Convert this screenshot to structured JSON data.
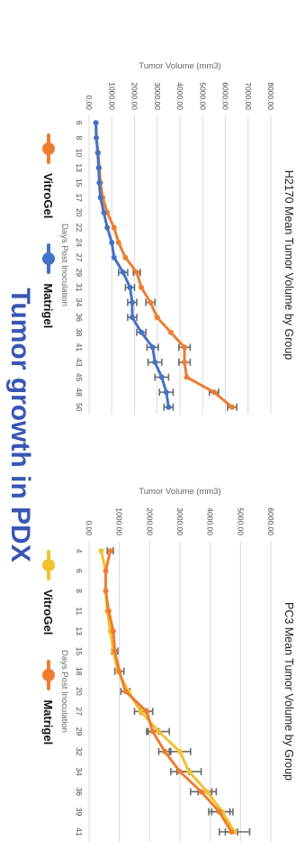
{
  "page_title": "Tumor growth in PDX",
  "colors": {
    "vitrogel_left": "#ed7d31",
    "matrigel_left": "#4472c4",
    "vitrogel_right": "#f2c12e",
    "matrigel_right": "#ed7d31",
    "title": "#3a56b5",
    "error_bar": "#6b6b6b",
    "grid": "#d9d9d9"
  },
  "legends": [
    {
      "items": [
        {
          "label": "VitroGel",
          "color": "#ed7d31"
        },
        {
          "label": "Matrigel",
          "color": "#4472c4"
        }
      ]
    },
    {
      "items": [
        {
          "label": "VitroGel",
          "color": "#f2c12e"
        },
        {
          "label": "Matrigel",
          "color": "#ed7d31"
        }
      ]
    }
  ],
  "chart_data": [
    {
      "type": "line",
      "title": "H2170 Mean Tumor Volume by Group",
      "xlabel": "Days Post Inoculation",
      "ylabel": "Tumor Volume (mm3)",
      "ylim": [
        0,
        8000
      ],
      "yticks": [
        "0.00",
        "1000.00",
        "2000.00",
        "3000.00",
        "4000.00",
        "5000.00",
        "6000.00",
        "7000.00",
        "8000.00"
      ],
      "grid": true,
      "legend_position": "bottom",
      "categories": [
        "6",
        "8",
        "10",
        "13",
        "15",
        "17",
        "20",
        "22",
        "24",
        "27",
        "29",
        "31",
        "34",
        "36",
        "38",
        "41",
        "43",
        "45",
        "48",
        "50"
      ],
      "series": [
        {
          "name": "VitroGel",
          "color": "#ed7d31",
          "values": [
            300,
            320,
            400,
            450,
            500,
            600,
            800,
            1100,
            1300,
            1600,
            2100,
            2300,
            2700,
            3000,
            3600,
            4200,
            4200,
            4300,
            5500,
            6300
          ],
          "errors": [
            0,
            0,
            0,
            0,
            0,
            0,
            0,
            0,
            0,
            0,
            150,
            0,
            200,
            0,
            0,
            250,
            250,
            0,
            200,
            200
          ]
        },
        {
          "name": "Matrigel",
          "color": "#4472c4",
          "values": [
            300,
            320,
            380,
            420,
            450,
            500,
            650,
            800,
            1000,
            1100,
            1500,
            1800,
            1900,
            1900,
            2300,
            2800,
            2900,
            3200,
            3400,
            3500
          ],
          "errors": [
            0,
            0,
            0,
            0,
            0,
            0,
            0,
            0,
            0,
            0,
            200,
            200,
            200,
            200,
            200,
            250,
            300,
            300,
            300,
            200
          ]
        }
      ]
    },
    {
      "type": "line",
      "title": "PC3 Mean Tumor Volume by Group",
      "xlabel": "Days Post Inoculation",
      "ylabel": "Tumor Volume (mm3)",
      "ylim": [
        0,
        6000
      ],
      "yticks": [
        "0.00",
        "1000.00",
        "2000.00",
        "3000.00",
        "4000.00",
        "5000.00",
        "6000.00"
      ],
      "grid": true,
      "legend_position": "bottom",
      "categories": [
        "4",
        "6",
        "8",
        "11",
        "13",
        "15",
        "18",
        "20",
        "27",
        "29",
        "32",
        "34",
        "36",
        "39",
        "41"
      ],
      "series": [
        {
          "name": "VitroGel",
          "color": "#f2c12e",
          "values": [
            400,
            550,
            550,
            600,
            700,
            800,
            950,
            1300,
            1700,
            2300,
            3000,
            3300,
            3900,
            4400,
            4800
          ],
          "errors": [
            0,
            0,
            0,
            0,
            0,
            0,
            0,
            0,
            200,
            350,
            350,
            400,
            300,
            350,
            500
          ]
        },
        {
          "name": "Matrigel",
          "color": "#ed7d31",
          "values": [
            700,
            550,
            550,
            650,
            800,
            850,
            1000,
            1200,
            1900,
            2100,
            2500,
            3000,
            3700,
            4300,
            4700
          ],
          "errors": [
            100,
            0,
            0,
            0,
            0,
            100,
            150,
            150,
            200,
            200,
            200,
            300,
            350,
            350,
            200
          ]
        }
      ]
    }
  ]
}
